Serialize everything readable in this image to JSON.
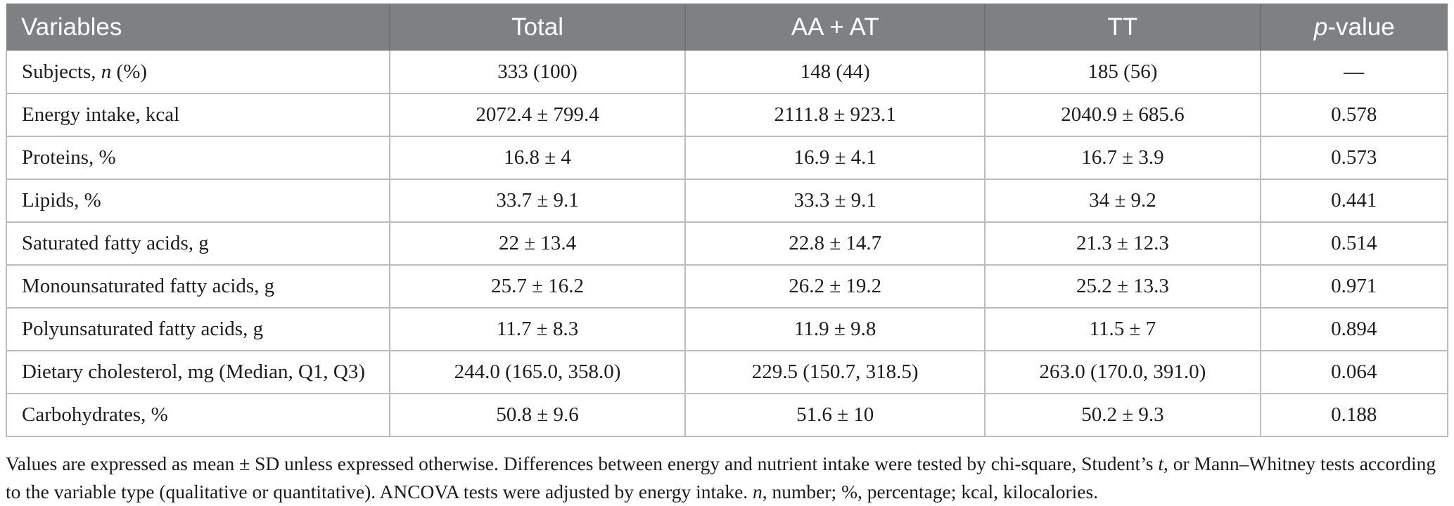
{
  "colors": {
    "header_bg": "#7e8081",
    "header_text": "#ffffff",
    "header_divider": "#6f7172",
    "grid_line": "#babcbd",
    "body_text": "#1e1e1e"
  },
  "table": {
    "headers": [
      "Variables",
      "Total",
      "AA + AT",
      "TT"
    ],
    "p_header": {
      "italic": "p",
      "rest": "-value"
    },
    "rows": [
      {
        "label_pre": "Subjects, ",
        "label_italic": "n",
        "label_post": " (%)",
        "values": [
          "333 (100)",
          "148 (44)",
          "185 (56)",
          "—"
        ]
      },
      {
        "label": "Energy intake, kcal",
        "values": [
          "2072.4 ± 799.4",
          "2111.8 ± 923.1",
          "2040.9 ± 685.6",
          "0.578"
        ]
      },
      {
        "label": "Proteins, %",
        "values": [
          "16.8 ± 4",
          "16.9 ± 4.1",
          "16.7 ± 3.9",
          "0.573"
        ]
      },
      {
        "label": "Lipids, %",
        "values": [
          "33.7 ± 9.1",
          "33.3 ± 9.1",
          "34 ± 9.2",
          "0.441"
        ]
      },
      {
        "label": "Saturated fatty acids, g",
        "values": [
          "22 ± 13.4",
          "22.8 ± 14.7",
          "21.3 ± 12.3",
          "0.514"
        ]
      },
      {
        "label": "Monounsaturated fatty acids, g",
        "values": [
          "25.7 ± 16.2",
          "26.2 ± 19.2",
          "25.2 ± 13.3",
          "0.971"
        ]
      },
      {
        "label": "Polyunsaturated fatty acids, g",
        "values": [
          "11.7 ± 8.3",
          "11.9 ± 9.8",
          "11.5 ± 7",
          "0.894"
        ]
      },
      {
        "label": "Dietary cholesterol, mg (Median, Q1, Q3)",
        "values": [
          "244.0 (165.0, 358.0)",
          "229.5 (150.7, 318.5)",
          "263.0 (170.0, 391.0)",
          "0.064"
        ]
      },
      {
        "label": "Carbohydrates, %",
        "values": [
          "50.8 ± 9.6",
          "51.6 ± 10",
          "50.2 ± 9.3",
          "0.188"
        ]
      }
    ]
  },
  "footnote": {
    "seg1": "Values are expressed as mean ± SD unless expressed otherwise. Differences between energy and nutrient intake were tested by chi-square, Student’s ",
    "seg2_italic": "t",
    "seg3": ", or Mann–Whitney tests according to the variable type (qualitative or quantitative). ANCOVA tests were adjusted by energy intake. ",
    "seg4_italic": "n",
    "seg5": ", number; %, percentage; kcal, kilocalories."
  }
}
